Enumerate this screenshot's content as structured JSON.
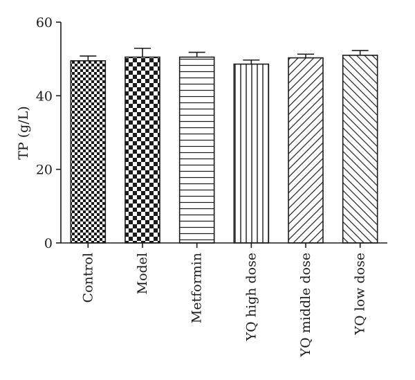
{
  "chart_data": {
    "type": "bar",
    "title": "",
    "xlabel": "",
    "ylabel": "TP (g/L)",
    "ylim": [
      0,
      60
    ],
    "yticks": [
      0,
      20,
      40,
      60
    ],
    "grid": false,
    "categories": [
      "Control",
      "Model",
      "Metformin",
      "YQ high dose",
      "YQ middle dose",
      "YQ low dose"
    ],
    "values": [
      49.5,
      50.5,
      50.5,
      48.6,
      50.3,
      51.0
    ],
    "errors": [
      1.3,
      2.4,
      1.3,
      1.1,
      1.0,
      1.3
    ],
    "patterns": [
      "checker-fine",
      "checker-coarse",
      "horizontal-lines",
      "vertical-lines",
      "diagonal-up",
      "diagonal-down"
    ]
  }
}
